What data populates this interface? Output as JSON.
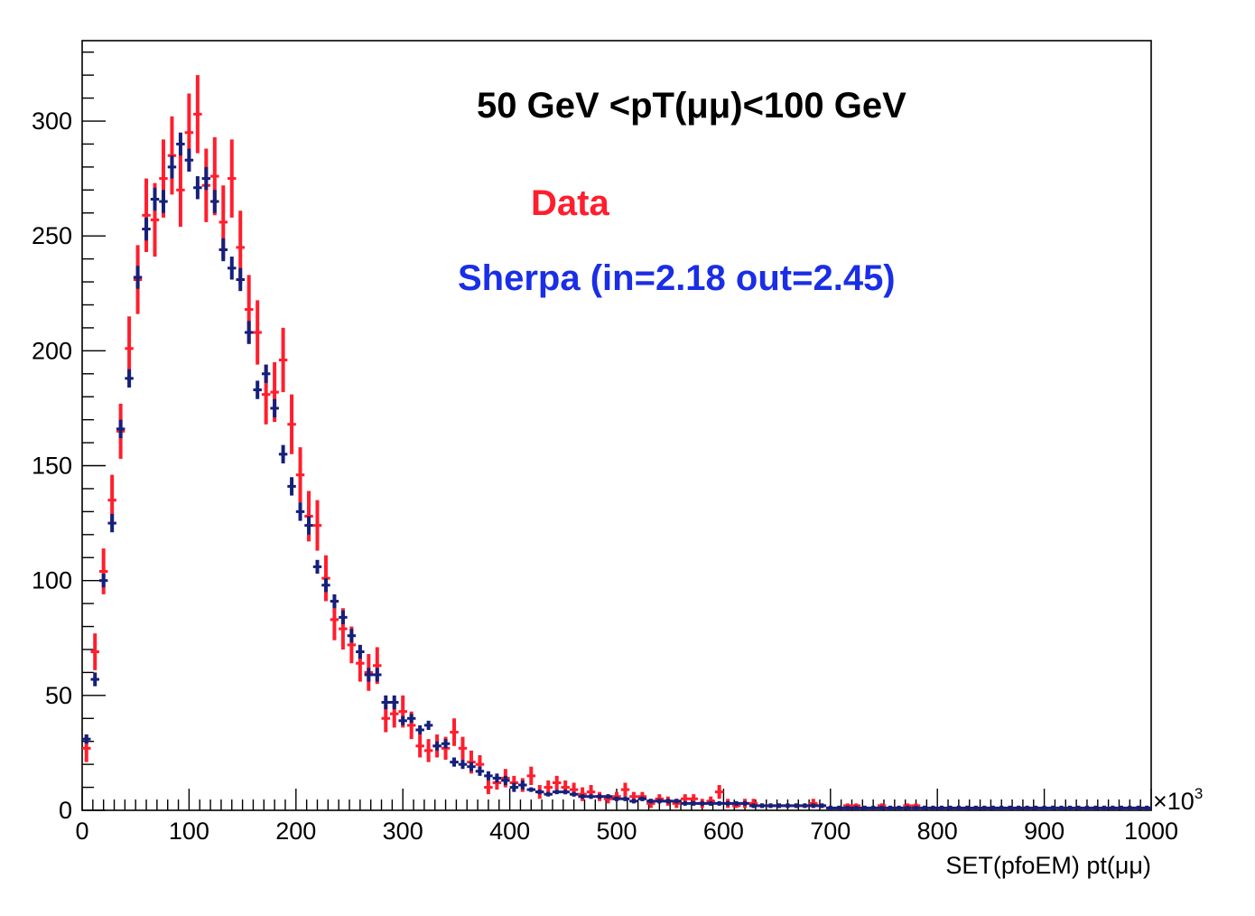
{
  "chart_data": {
    "type": "scatter",
    "title": "50 GeV <pT(μμ)<100 GeV",
    "xlabel": "SET(pfoEM) pt(μμ)",
    "ylabel": "",
    "x_multiplier_label": "×10",
    "x_multiplier_exponent": "3",
    "xlim": [
      0,
      1000
    ],
    "ylim": [
      0,
      335
    ],
    "x_ticks": [
      0,
      100,
      200,
      300,
      400,
      500,
      600,
      700,
      800,
      900,
      1000
    ],
    "y_ticks": [
      0,
      50,
      100,
      150,
      200,
      250,
      300
    ],
    "bin_width": 8,
    "grid": false,
    "legend_placement": "top-right",
    "series": [
      {
        "name": "Data",
        "color": "#ff1e2d",
        "x": [
          4,
          12,
          20,
          28,
          36,
          44,
          52,
          60,
          68,
          76,
          84,
          92,
          100,
          108,
          116,
          124,
          132,
          140,
          148,
          156,
          164,
          172,
          180,
          188,
          196,
          204,
          212,
          220,
          228,
          236,
          244,
          252,
          260,
          268,
          276,
          284,
          292,
          300,
          308,
          316,
          324,
          332,
          340,
          348,
          356,
          364,
          372,
          380,
          388,
          396,
          404,
          412,
          420,
          428,
          436,
          444,
          452,
          460,
          468,
          476,
          484,
          492,
          500,
          508,
          516,
          524,
          532,
          540,
          548,
          556,
          564,
          572,
          580,
          588,
          596,
          604,
          612,
          620,
          628,
          636,
          644,
          652,
          660,
          668,
          676,
          684,
          692,
          700,
          708,
          716,
          724,
          732,
          740,
          748,
          756,
          764,
          772,
          780,
          788,
          796,
          804,
          812,
          820,
          828,
          836,
          844,
          852,
          860,
          868,
          876,
          884,
          892,
          900,
          908,
          916,
          924,
          932,
          940,
          948,
          956,
          964,
          972,
          980,
          988,
          996
        ],
        "y": [
          27,
          69,
          104,
          135,
          165,
          201,
          231,
          259,
          257,
          275,
          285,
          270,
          295,
          303,
          272,
          276,
          256,
          275,
          245,
          218,
          208,
          181,
          182,
          196,
          168,
          146,
          128,
          124,
          101,
          83,
          79,
          72,
          64,
          60,
          63,
          40,
          42,
          43,
          37,
          28,
          26,
          28,
          27,
          34,
          27,
          21,
          20,
          10,
          12,
          14,
          12,
          11,
          15,
          8,
          10,
          12,
          10,
          9,
          7,
          8,
          6,
          5,
          6,
          9,
          6,
          6,
          3,
          5,
          4,
          3,
          5,
          5,
          3,
          4,
          8,
          3,
          2,
          3,
          3,
          2,
          2,
          2,
          2,
          2,
          2,
          3,
          2,
          1,
          1,
          2,
          2,
          1,
          1,
          2,
          1,
          1,
          2,
          2,
          1,
          1,
          1,
          1,
          1,
          1,
          1,
          1,
          1,
          1,
          1,
          1,
          1,
          1,
          1,
          1,
          1,
          1,
          1,
          1,
          1,
          1,
          1,
          1,
          1,
          1,
          1
        ],
        "err": [
          6,
          8,
          10,
          11,
          12,
          14,
          15,
          16,
          16,
          17,
          17,
          16,
          17,
          17,
          16,
          17,
          16,
          17,
          16,
          15,
          14,
          13,
          13,
          14,
          13,
          12,
          11,
          11,
          10,
          9,
          9,
          8,
          8,
          8,
          8,
          6,
          6,
          7,
          6,
          5,
          5,
          5,
          5,
          6,
          5,
          5,
          4,
          3,
          3,
          4,
          3,
          3,
          4,
          3,
          3,
          3,
          3,
          3,
          3,
          3,
          2,
          2,
          2,
          3,
          2,
          2,
          2,
          2,
          2,
          2,
          2,
          2,
          2,
          2,
          3,
          2,
          1,
          2,
          2,
          1,
          1,
          1,
          1,
          1,
          1,
          2,
          1,
          1,
          1,
          1,
          1,
          1,
          1,
          1,
          1,
          1,
          1,
          1,
          1,
          1,
          1,
          1,
          1,
          1,
          1,
          1,
          1,
          1,
          1,
          1,
          1,
          1,
          1,
          1,
          1,
          1,
          1,
          1,
          1,
          1,
          1,
          1,
          1,
          1,
          1
        ]
      },
      {
        "name": "Sherpa (in=2.18 out=2.45)",
        "color": "#15207a",
        "label_color": "#1a2ee6",
        "x": [
          4,
          12,
          20,
          28,
          36,
          44,
          52,
          60,
          68,
          76,
          84,
          92,
          100,
          108,
          116,
          124,
          132,
          140,
          148,
          156,
          164,
          172,
          180,
          188,
          196,
          204,
          212,
          220,
          228,
          236,
          244,
          252,
          260,
          268,
          276,
          284,
          292,
          300,
          308,
          316,
          324,
          332,
          340,
          348,
          356,
          364,
          372,
          380,
          388,
          396,
          404,
          412,
          420,
          428,
          436,
          444,
          452,
          460,
          468,
          476,
          484,
          492,
          500,
          508,
          516,
          524,
          532,
          540,
          548,
          556,
          564,
          572,
          580,
          588,
          596,
          604,
          612,
          620,
          628,
          636,
          644,
          652,
          660,
          668,
          676,
          684,
          692,
          700,
          708,
          716,
          724,
          732,
          740,
          748,
          756,
          764,
          772,
          780,
          788,
          796,
          804,
          812,
          820,
          828,
          836,
          844,
          852,
          860,
          868,
          876,
          884,
          892,
          900,
          908,
          916,
          924,
          932,
          940,
          948,
          956,
          964,
          972,
          980,
          988,
          996
        ],
        "y": [
          31,
          57,
          100,
          125,
          166,
          188,
          232,
          253,
          266,
          265,
          280,
          290,
          283,
          271,
          275,
          265,
          244,
          236,
          231,
          208,
          183,
          190,
          175,
          155,
          141,
          130,
          124,
          106,
          98,
          91,
          84,
          76,
          69,
          59,
          59,
          47,
          47,
          39,
          40,
          35,
          37,
          28,
          29,
          21,
          20,
          19,
          17,
          15,
          14,
          13,
          10,
          11,
          9,
          8,
          7,
          8,
          8,
          7,
          6,
          6,
          6,
          6,
          5,
          5,
          4,
          5,
          4,
          4,
          4,
          4,
          3,
          3,
          3,
          3,
          3,
          3,
          3,
          3,
          2,
          2,
          2,
          2,
          2,
          2,
          2,
          2,
          2,
          1,
          1,
          1,
          1,
          1,
          1,
          1,
          1,
          1,
          1,
          1,
          1,
          1,
          1,
          1,
          1,
          1,
          1,
          1,
          1,
          1,
          1,
          1,
          1,
          1,
          1,
          1,
          1,
          1,
          1,
          1,
          1,
          1,
          1,
          1,
          1,
          1,
          1
        ],
        "err": [
          2,
          3,
          3,
          4,
          4,
          4,
          5,
          5,
          5,
          5,
          5,
          5,
          5,
          5,
          5,
          5,
          5,
          5,
          5,
          5,
          4,
          4,
          4,
          4,
          4,
          4,
          4,
          3,
          3,
          3,
          3,
          3,
          3,
          3,
          3,
          3,
          3,
          2,
          2,
          2,
          2,
          2,
          2,
          2,
          2,
          2,
          2,
          2,
          2,
          2,
          2,
          2,
          1,
          1,
          1,
          1,
          1,
          1,
          1,
          1,
          1,
          1,
          1,
          1,
          1,
          1,
          1,
          1,
          1,
          1,
          1,
          1,
          1,
          1,
          1,
          1,
          1,
          1,
          1,
          1,
          1,
          1,
          1,
          1,
          1,
          1,
          1,
          1,
          1,
          1,
          1,
          1,
          1,
          1,
          1,
          1,
          1,
          1,
          1,
          1,
          1,
          1,
          1,
          1,
          1,
          1,
          1,
          1,
          1,
          1,
          1,
          1,
          1,
          1,
          1,
          1,
          1,
          1,
          1,
          1,
          1,
          1,
          1,
          1,
          1
        ]
      }
    ]
  }
}
